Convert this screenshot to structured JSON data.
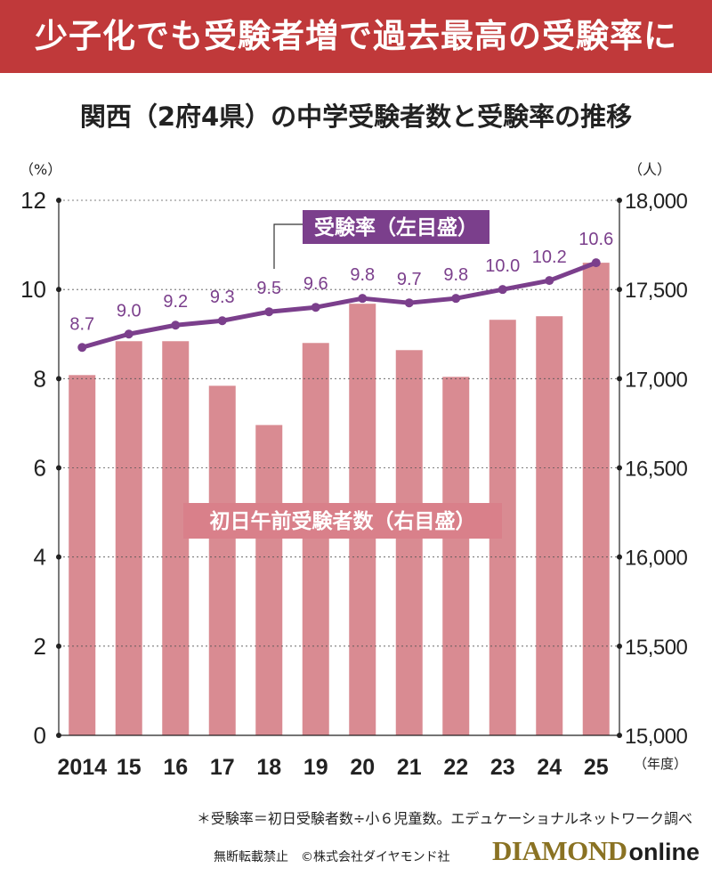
{
  "header": {
    "banner": "少子化でも受験者増で過去最高の受験率に",
    "subtitle": "関西（2府4県）の中学受験者数と受験率の推移"
  },
  "chart_data": {
    "type": "bar+line",
    "categories": [
      "2014",
      "15",
      "16",
      "17",
      "18",
      "19",
      "20",
      "21",
      "22",
      "23",
      "24",
      "25"
    ],
    "series": [
      {
        "name": "初日午前受験者数（右目盛）",
        "type": "bar",
        "axis": "right",
        "values": [
          17020,
          17210,
          17210,
          16960,
          16740,
          17200,
          17420,
          17160,
          17010,
          17330,
          17350,
          17650
        ]
      },
      {
        "name": "受験率（左目盛）",
        "type": "line",
        "axis": "left",
        "values": [
          8.7,
          9.0,
          9.2,
          9.3,
          9.5,
          9.6,
          9.8,
          9.7,
          9.8,
          10.0,
          10.2,
          10.6
        ],
        "labels": [
          "8.7",
          "9.0",
          "9.2",
          "9.3",
          "9.5",
          "9.6",
          "9.8",
          "9.7",
          "9.8",
          "10.0",
          "10.2",
          "10.6"
        ]
      }
    ],
    "left_axis": {
      "unit": "（%）",
      "ticks": [
        "0",
        "2",
        "4",
        "6",
        "8",
        "10",
        "12"
      ],
      "ylim": [
        0,
        12
      ]
    },
    "right_axis": {
      "unit": "（人）",
      "ticks": [
        "15,000",
        "15,500",
        "16,000",
        "16,500",
        "17,000",
        "17,500",
        "18,000"
      ],
      "ylim": [
        15000,
        18000
      ]
    },
    "x_unit": "（年度）",
    "grid": true,
    "colors": {
      "bar": "#d98b92",
      "line": "#7b3f8c",
      "label_box": "#7b3f8c",
      "bar_label_box": "#d9808a"
    }
  },
  "footer": {
    "note": "＊受験率＝初日受験者数÷小６児童数。エデュケーショナルネットワーク調べ",
    "copyright": "無断転載禁止　©株式会社ダイヤモンド社",
    "logo_main": "DIAMOND",
    "logo_sub": "online"
  }
}
